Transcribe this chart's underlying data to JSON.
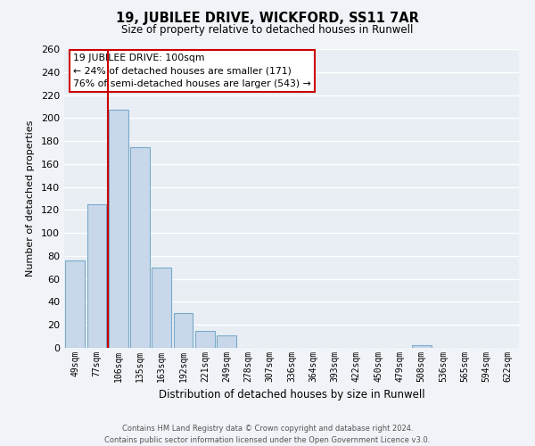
{
  "title1": "19, JUBILEE DRIVE, WICKFORD, SS11 7AR",
  "title2": "Size of property relative to detached houses in Runwell",
  "xlabel": "Distribution of detached houses by size in Runwell",
  "ylabel": "Number of detached properties",
  "bar_color": "#c8d8ea",
  "bar_edge_color": "#7aaac8",
  "vline_color": "#cc0000",
  "categories": [
    "49sqm",
    "77sqm",
    "106sqm",
    "135sqm",
    "163sqm",
    "192sqm",
    "221sqm",
    "249sqm",
    "278sqm",
    "307sqm",
    "336sqm",
    "364sqm",
    "393sqm",
    "422sqm",
    "450sqm",
    "479sqm",
    "508sqm",
    "536sqm",
    "565sqm",
    "594sqm",
    "622sqm"
  ],
  "values": [
    76,
    125,
    207,
    175,
    70,
    30,
    15,
    11,
    0,
    0,
    0,
    0,
    0,
    0,
    0,
    0,
    2,
    0,
    0,
    0,
    0
  ],
  "ylim": [
    0,
    260
  ],
  "yticks": [
    0,
    20,
    40,
    60,
    80,
    100,
    120,
    140,
    160,
    180,
    200,
    220,
    240,
    260
  ],
  "annotation_title": "19 JUBILEE DRIVE: 100sqm",
  "annotation_line1": "← 24% of detached houses are smaller (171)",
  "annotation_line2": "76% of semi-detached houses are larger (543) →",
  "annotation_box_color": "#ffffff",
  "annotation_box_edge": "#cc0000",
  "footer1": "Contains HM Land Registry data © Crown copyright and database right 2024.",
  "footer2": "Contains public sector information licensed under the Open Government Licence v3.0.",
  "background_color": "#f0f4f8",
  "plot_bg_color": "#e8eef4",
  "grid_color": "#ffffff"
}
